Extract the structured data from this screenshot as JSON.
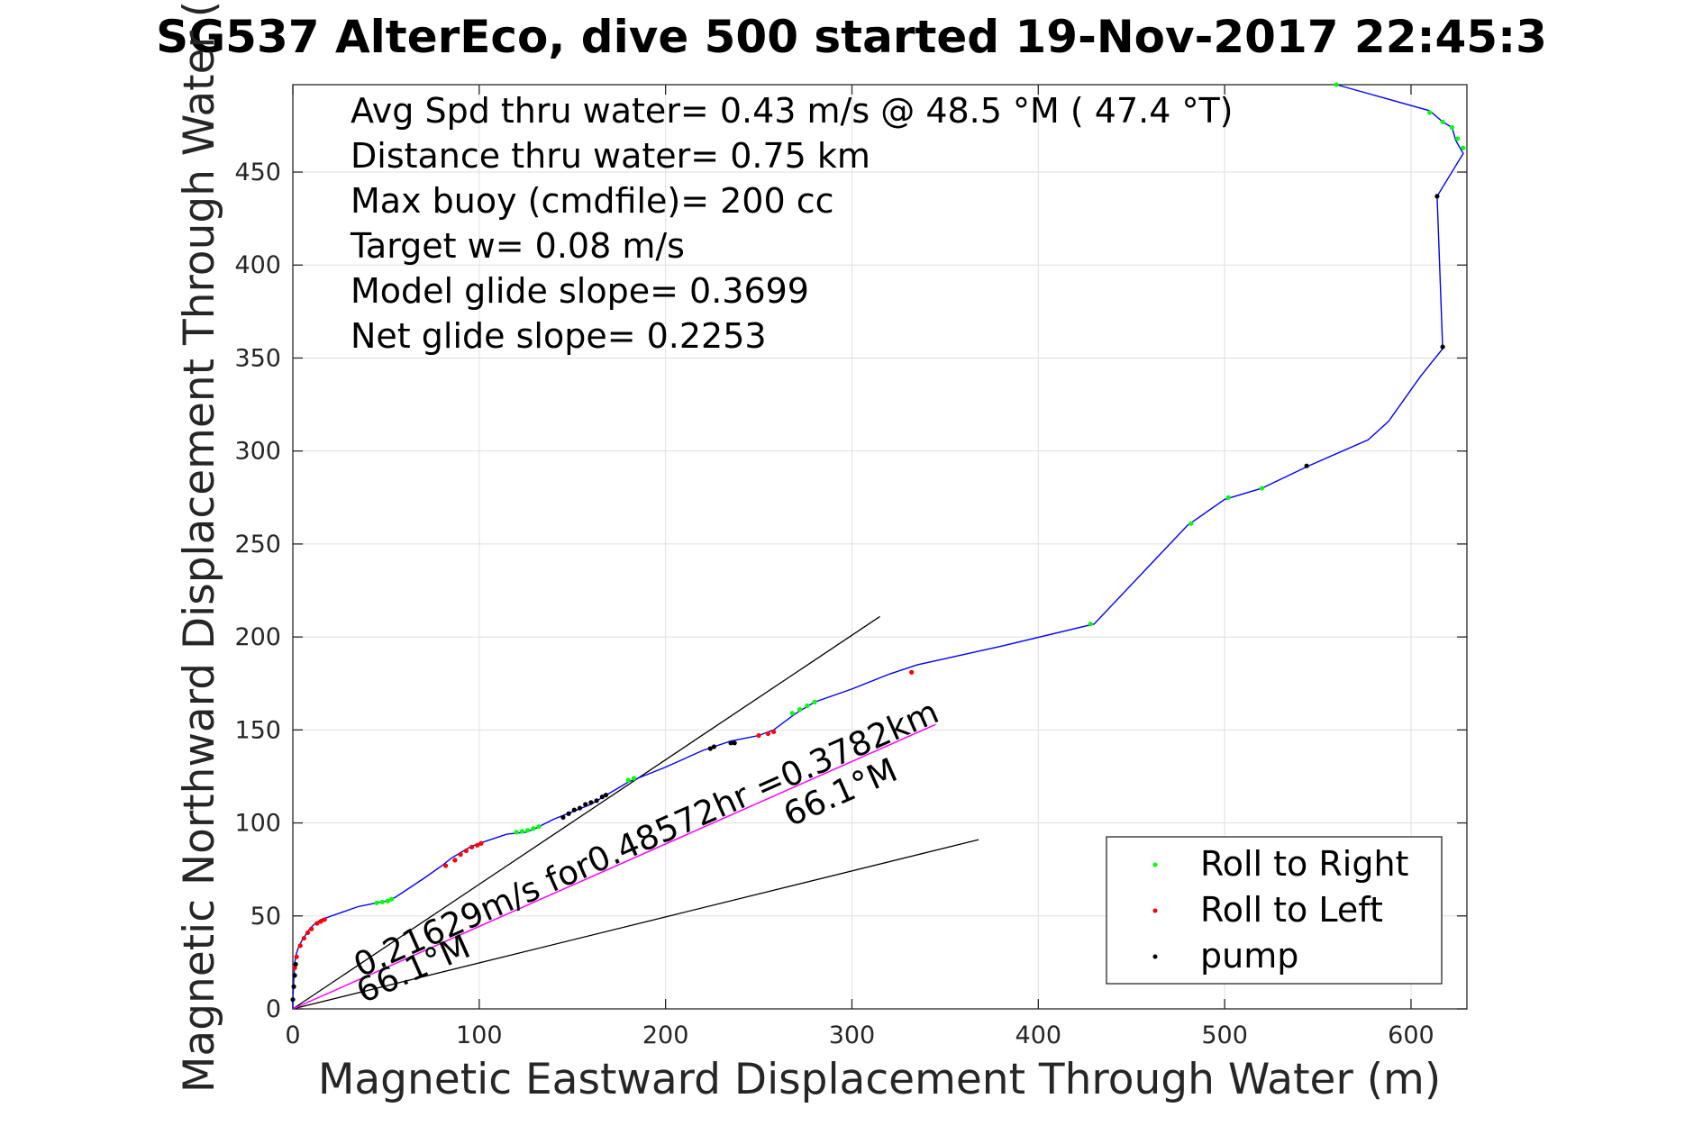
{
  "chart_data": {
    "type": "line",
    "title": "SG537 AlterEco, dive 500 started 19-Nov-2017 22:45:3",
    "xlabel": "Magnetic Eastward Displacement Through Water (m)",
    "ylabel": "Magnetic Northward Displacement Through Water (",
    "xlim": [
      0,
      630
    ],
    "ylim": [
      0,
      497
    ],
    "xticks": [
      0,
      100,
      200,
      300,
      400,
      500,
      600
    ],
    "yticks": [
      0,
      50,
      100,
      150,
      200,
      250,
      300,
      350,
      400,
      450
    ],
    "grid": true,
    "legend_position": "bottom-right",
    "colors": {
      "track": "#0000ff",
      "roll_right": "#00ff00",
      "roll_left": "#ff0000",
      "pump": "#000000",
      "avg_line": "#ff00ff",
      "ref_lines": "#000000"
    },
    "info_text": [
      "Avg Spd thru water=  0.43 m/s @  48.5 °M ( 47.4 °T)",
      "Distance thru water=  0.75 km",
      "Max buoy (cmdfile)= 200 cc",
      "Target w= 0.08 m/s",
      "Model glide slope= 0.3699",
      "Net glide slope= 0.2253"
    ],
    "annotations": {
      "vector_label": "0.21629m/s for0.48572hr =0.3782km",
      "heading_label_1": "66.1°M",
      "heading_label_2": "66.1°M"
    },
    "series": [
      {
        "name": "track",
        "x": [
          0,
          0,
          0.5,
          1,
          2,
          3,
          5,
          7,
          9,
          12,
          15,
          18,
          35,
          45,
          50,
          55,
          70,
          80,
          85,
          90,
          95,
          100,
          115,
          125,
          130,
          140,
          150,
          160,
          170,
          180,
          200,
          220,
          235,
          250,
          258,
          270,
          280,
          300,
          320,
          335,
          380,
          430,
          480,
          500,
          520,
          545,
          577,
          588,
          605,
          617,
          614,
          628,
          624,
          622,
          617,
          610,
          560
        ],
        "y": [
          0,
          5,
          15,
          25,
          30,
          33,
          37,
          40,
          43,
          46,
          48,
          49,
          55,
          57,
          58,
          60,
          70,
          77,
          81,
          84,
          87,
          89,
          94,
          95,
          97,
          102,
          106,
          110,
          116,
          122,
          130,
          139,
          144,
          147,
          150,
          159,
          165,
          172,
          180,
          185,
          195,
          207,
          260,
          274,
          280,
          292,
          306,
          316,
          340,
          355,
          437,
          460,
          467,
          474,
          477,
          483,
          497
        ]
      },
      {
        "name": "Roll to Right",
        "x": [
          45,
          48,
          51,
          53,
          120,
          123,
          126,
          129,
          132,
          180,
          183,
          268,
          272,
          276,
          280,
          428,
          482,
          502,
          520,
          560,
          610,
          617,
          622,
          625,
          628
        ],
        "y": [
          57,
          57.5,
          58,
          59,
          95,
          95.5,
          96,
          97,
          98,
          123,
          124,
          159,
          161,
          163,
          165,
          207,
          261,
          275,
          280,
          497,
          482,
          477,
          474,
          468,
          463
        ]
      },
      {
        "name": "Roll to Left",
        "x": [
          1,
          2,
          4,
          6,
          8,
          10,
          13,
          15,
          17,
          82,
          87,
          90,
          93,
          96,
          99,
          101,
          250,
          255,
          258,
          332
        ],
        "y": [
          22,
          28,
          34,
          38,
          41,
          43,
          46,
          47,
          48,
          77,
          80,
          83,
          85,
          87,
          88,
          89,
          147,
          148,
          149,
          181
        ]
      },
      {
        "name": "pump",
        "x": [
          0,
          0.5,
          1,
          1.5,
          145,
          148,
          151,
          154,
          157,
          160,
          163,
          166,
          168,
          224,
          226,
          235,
          237,
          544,
          614,
          617
        ],
        "y": [
          5,
          12,
          18,
          24,
          103,
          105,
          107,
          108,
          110,
          111,
          112,
          114,
          115,
          140,
          141,
          143,
          143,
          292,
          437,
          356
        ]
      }
    ],
    "avg_vector": {
      "x": [
        0,
        345
      ],
      "y": [
        0,
        153
      ]
    },
    "ref_lines": [
      {
        "x": [
          0,
          315
        ],
        "y": [
          0,
          211
        ]
      },
      {
        "x": [
          0,
          368
        ],
        "y": [
          0,
          91
        ]
      }
    ],
    "legend": [
      "Roll to Right",
      "Roll to Left",
      "pump"
    ]
  }
}
